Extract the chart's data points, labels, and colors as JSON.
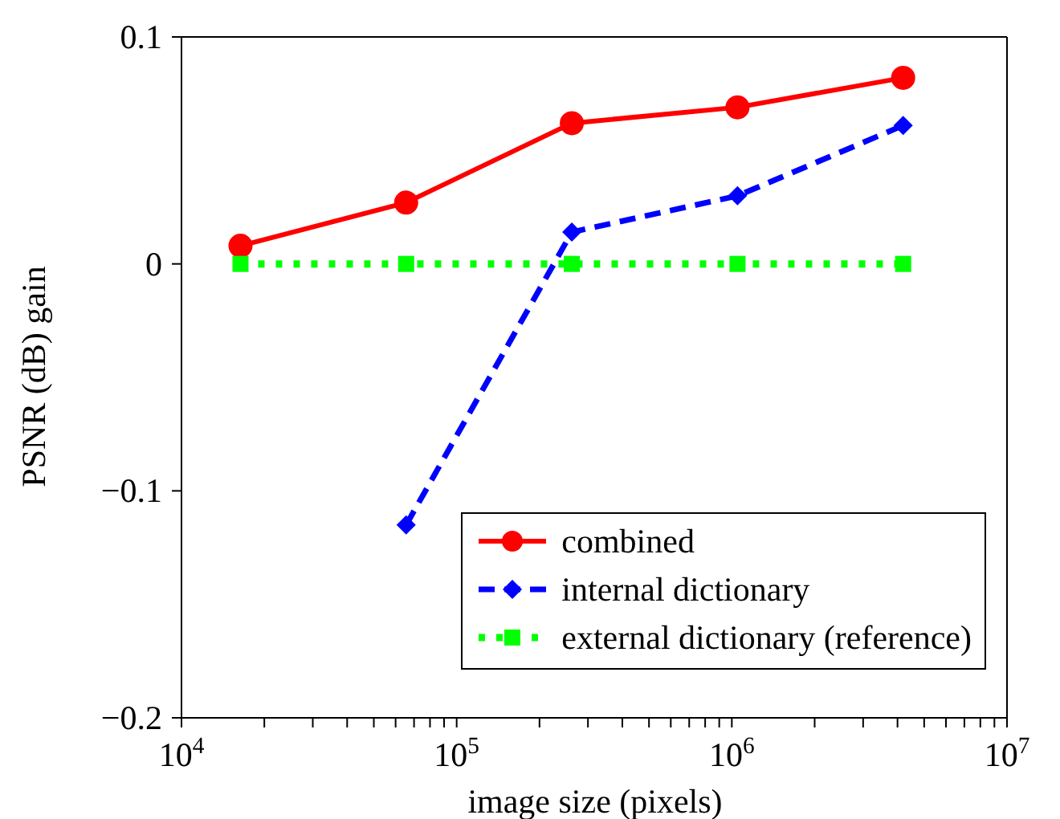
{
  "chart_data": {
    "type": "line",
    "xlabel": "image size (pixels)",
    "ylabel": "PSNR (dB) gain",
    "log": "x",
    "grid": false,
    "legend": "bottom right",
    "x": [
      16384,
      65536,
      262144,
      1048576,
      4194304
    ],
    "xlim": [
      10000,
      10000000
    ],
    "xticks": [
      {
        "value": 10000,
        "label": "10$^{4}$"
      },
      {
        "value": 20000,
        "label": null
      },
      {
        "value": 30000,
        "label": null
      },
      {
        "value": 40000,
        "label": null
      },
      {
        "value": 50000,
        "label": null
      },
      {
        "value": 60000,
        "label": null
      },
      {
        "value": 70000,
        "label": null
      },
      {
        "value": 80000,
        "label": null
      },
      {
        "value": 90000,
        "label": null
      },
      {
        "value": 100000,
        "label": "10$^{5}$"
      },
      {
        "value": 200000,
        "label": null
      },
      {
        "value": 300000,
        "label": null
      },
      {
        "value": 400000,
        "label": null
      },
      {
        "value": 500000,
        "label": null
      },
      {
        "value": 600000,
        "label": null
      },
      {
        "value": 700000,
        "label": null
      },
      {
        "value": 800000,
        "label": null
      },
      {
        "value": 900000,
        "label": null
      },
      {
        "value": 1000000,
        "label": "10$^{6}$"
      },
      {
        "value": 2000000,
        "label": null
      },
      {
        "value": 3000000,
        "label": null
      },
      {
        "value": 4000000,
        "label": null
      },
      {
        "value": 5000000,
        "label": null
      },
      {
        "value": 6000000,
        "label": null
      },
      {
        "value": 7000000,
        "label": null
      },
      {
        "value": 8000000,
        "label": null
      },
      {
        "value": 9000000,
        "label": null
      },
      {
        "value": 10000000,
        "label": "10$^{7}$"
      }
    ],
    "ylim": [
      -0.2,
      0.1
    ],
    "yticks": [
      {
        "value": -0.2,
        "label": "−0.2"
      },
      {
        "value": -0.1,
        "label": "−0.1"
      },
      0,
      0.1
    ],
    "series": [
      {
        "name": "combined",
        "color": "#ff0000",
        "marker": "circle",
        "line_style": "solid",
        "values": [
          0.008,
          0.027,
          0.062,
          0.069,
          0.082
        ]
      },
      {
        "name": "internal dictionary",
        "color": "#0000ff",
        "marker": "diamond",
        "line_style": "dashed",
        "values": [
          null,
          -0.115,
          0.014,
          0.03,
          0.061
        ]
      },
      {
        "name": "external dictionary (reference)",
        "color": "#00ff00",
        "marker": "square",
        "line_style": "dotted",
        "values": [
          0,
          0,
          0,
          0,
          0
        ]
      }
    ]
  }
}
